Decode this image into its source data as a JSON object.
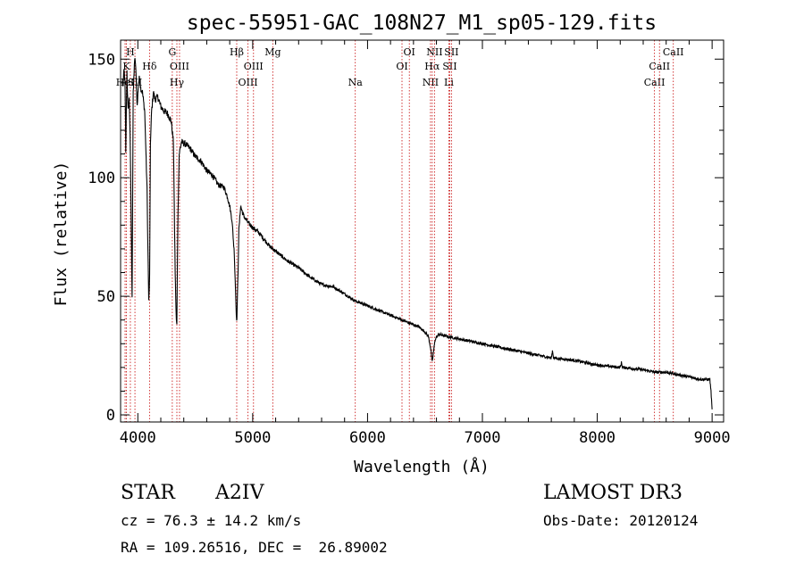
{
  "chart_data": {
    "type": "line",
    "title": "spec-55951-GAC_108N27_M1_sp05-129.fits",
    "xlabel": "Wavelength (Å)",
    "ylabel": "Flux (relative)",
    "xlim": [
      3850,
      9100
    ],
    "ylim": [
      -3,
      158
    ],
    "xticks": [
      4000,
      5000,
      6000,
      7000,
      8000,
      9000
    ],
    "yticks": [
      0,
      50,
      100,
      150
    ],
    "xtick_labels": [
      "4000",
      "5000",
      "6000",
      "7000",
      "8000",
      "9000"
    ],
    "ytick_labels": [
      "0",
      "50",
      "100",
      "150"
    ],
    "series": [
      {
        "name": "flux",
        "color": "#000000",
        "x": [
          3870,
          3880,
          3889,
          3895,
          3905,
          3915,
          3925,
          3933,
          3940,
          3950,
          3960,
          3970,
          3978,
          3985,
          3995,
          4005,
          4015,
          4025,
          4040,
          4060,
          4080,
          4095,
          4102,
          4110,
          4120,
          4135,
          4150,
          4175,
          4200,
          4230,
          4260,
          4290,
          4310,
          4325,
          4335,
          4340,
          4348,
          4360,
          4380,
          4420,
          4460,
          4500,
          4550,
          4600,
          4650,
          4700,
          4750,
          4780,
          4800,
          4820,
          4840,
          4852,
          4861,
          4870,
          4880,
          4895,
          4920,
          4960,
          5000,
          5050,
          5100,
          5150,
          5200,
          5300,
          5400,
          5500,
          5600,
          5700,
          5800,
          5893,
          5950,
          6000,
          6100,
          6200,
          6300,
          6400,
          6450,
          6500,
          6530,
          6550,
          6563,
          6575,
          6590,
          6620,
          6700,
          6800,
          6900,
          7000,
          7200,
          7400,
          7600,
          7610,
          7620,
          7800,
          8000,
          8200,
          8210,
          8220,
          8400,
          8500,
          8600,
          8700,
          8800,
          8900,
          8980,
          8990,
          9000
        ],
        "values": [
          138,
          145,
          140,
          110,
          145,
          128,
          133,
          118,
          90,
          50,
          135,
          148,
          150,
          142,
          130,
          140,
          142,
          138,
          136,
          128,
          95,
          48,
          55,
          115,
          128,
          136,
          133,
          134,
          130,
          128,
          127,
          124,
          115,
          60,
          40,
          38,
          80,
          110,
          115,
          114,
          112,
          109,
          107,
          103,
          101,
          97,
          96,
          92,
          88,
          82,
          68,
          50,
          38,
          55,
          78,
          88,
          84,
          81,
          79,
          77,
          74,
          71,
          69,
          65,
          62,
          58,
          55,
          54,
          51,
          48,
          47,
          46,
          44,
          42,
          40,
          38,
          37,
          35,
          33,
          28,
          22,
          27,
          32,
          34,
          33,
          32,
          31,
          30,
          28,
          26,
          24,
          27,
          24,
          23,
          21,
          20,
          22,
          20,
          19,
          18,
          18,
          17,
          16,
          15,
          15,
          10,
          2
        ]
      }
    ],
    "lines": [
      {
        "wl": 3889,
        "label": "HeI",
        "row": 3
      },
      {
        "wl": 3900,
        "label": "K",
        "row": 2
      },
      {
        "wl": 3935,
        "label": "H",
        "row": 1
      },
      {
        "wl": 3975,
        "label": "SII",
        "row": 3
      },
      {
        "wl": 4102,
        "label": "Hδ",
        "row": 2
      },
      {
        "wl": 4300,
        "label": "G",
        "row": 1
      },
      {
        "wl": 4340,
        "label": "Hγ",
        "row": 3
      },
      {
        "wl": 4363,
        "label": "OIII",
        "row": 2
      },
      {
        "wl": 4861,
        "label": "Hβ",
        "row": 1
      },
      {
        "wl": 4959,
        "label": "OIII",
        "row": 3
      },
      {
        "wl": 5007,
        "label": "OIII",
        "row": 2
      },
      {
        "wl": 5175,
        "label": "Mg",
        "row": 1
      },
      {
        "wl": 5893,
        "label": "Na",
        "row": 3
      },
      {
        "wl": 6300,
        "label": "OI",
        "row": 2
      },
      {
        "wl": 6364,
        "label": "OI",
        "row": 1
      },
      {
        "wl": 6548,
        "label": "NII",
        "row": 3
      },
      {
        "wl": 6563,
        "label": "Hα",
        "row": 2
      },
      {
        "wl": 6583,
        "label": "NII",
        "row": 1
      },
      {
        "wl": 6708,
        "label": "Li",
        "row": 3
      },
      {
        "wl": 6716,
        "label": "SII",
        "row": 2
      },
      {
        "wl": 6731,
        "label": "SII",
        "row": 1
      },
      {
        "wl": 8498,
        "label": "CaII",
        "row": 3
      },
      {
        "wl": 8542,
        "label": "CaII",
        "row": 2
      },
      {
        "wl": 8662,
        "label": "CaII",
        "row": 1
      }
    ]
  },
  "info": {
    "class_label": "STAR",
    "subclass": "A2IV",
    "survey": "LAMOST DR3",
    "cz": "cz = 76.3 ± 14.2 km/s",
    "obs_date": "Obs-Date: 20120124",
    "radec": "RA = 109.26516, DEC =  26.89002"
  },
  "colors": {
    "line_marker": "#cc2222",
    "spectrum": "#000000"
  }
}
